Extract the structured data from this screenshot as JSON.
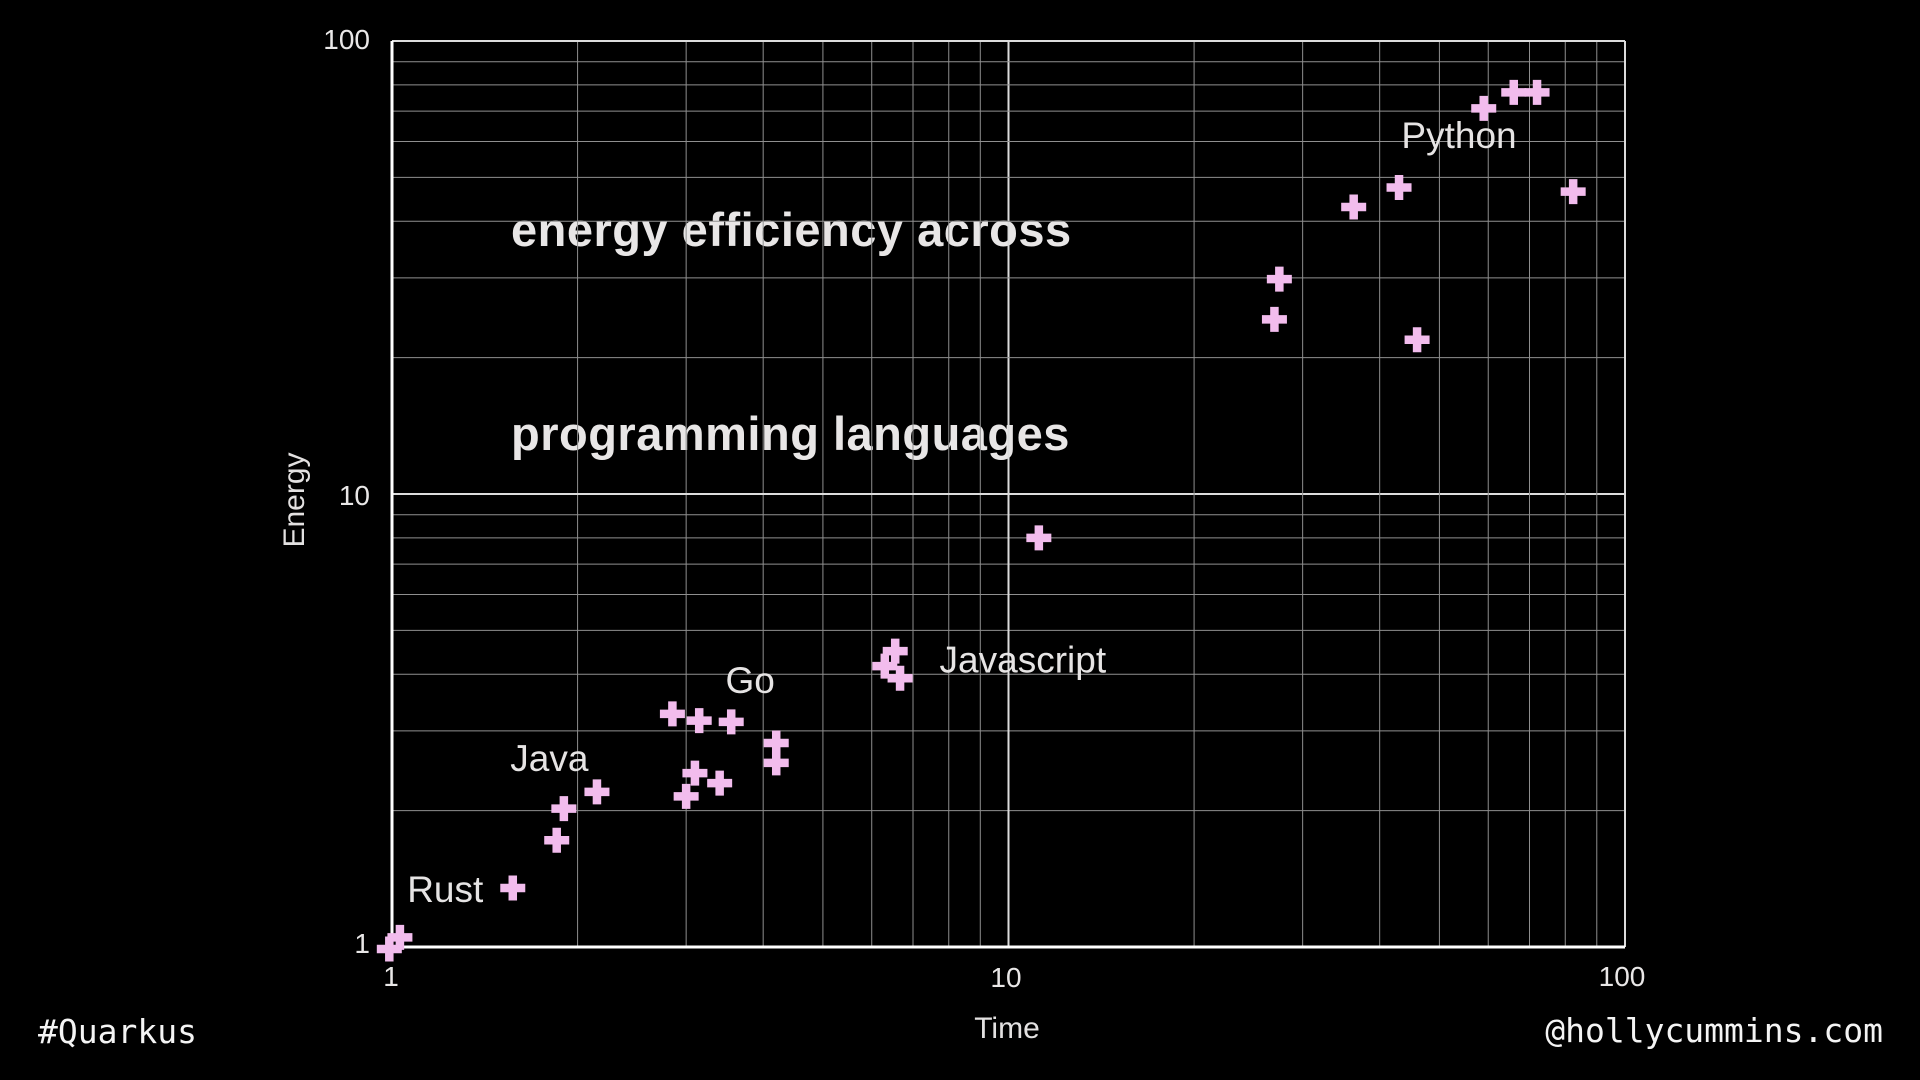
{
  "title": {
    "line1": "energy efficiency across",
    "line2": "programming languages"
  },
  "footer": {
    "hashtag": "#Quarkus",
    "website": "@hollycummins.com"
  },
  "chart_data": {
    "type": "scatter",
    "title": "energy efficiency across programming languages",
    "xlabel": "Time",
    "ylabel": "Energy",
    "xscale": "log",
    "yscale": "log",
    "xlim": [
      1,
      100
    ],
    "ylim": [
      1,
      100
    ],
    "grid": true,
    "x_ticks": [
      "1",
      "10",
      "100"
    ],
    "y_ticks": [
      "100",
      "10",
      "1"
    ],
    "marker": "plus",
    "marker_color": "#f2bced",
    "background_color": "#000000",
    "series": [
      {
        "name": "Rust",
        "label_at": [
          1.22,
          1.34
        ],
        "points": [
          [
            0.99,
            0.99
          ],
          [
            1.03,
            1.05
          ],
          [
            1.57,
            1.35
          ]
        ]
      },
      {
        "name": "Java",
        "label_at": [
          1.8,
          2.61
        ],
        "points": [
          [
            1.85,
            1.72
          ],
          [
            1.9,
            2.02
          ],
          [
            2.15,
            2.2
          ]
        ]
      },
      {
        "name": "Go",
        "label_at": [
          3.81,
          3.88
        ],
        "points": [
          [
            2.85,
            3.27
          ],
          [
            3.15,
            3.16
          ],
          [
            3.55,
            3.14
          ],
          [
            4.2,
            2.82
          ],
          [
            4.2,
            2.55
          ],
          [
            3.1,
            2.42
          ],
          [
            3.4,
            2.3
          ],
          [
            3.0,
            2.15
          ]
        ]
      },
      {
        "name": "Javascript",
        "label_at": [
          10.55,
          4.3
        ],
        "points": [
          [
            6.3,
            4.17
          ],
          [
            6.55,
            4.5
          ],
          [
            6.67,
            3.92
          ],
          [
            11.2,
            8.0
          ]
        ]
      },
      {
        "name": "Python",
        "label_at": [
          53.8,
          61.8
        ],
        "points": [
          [
            27.0,
            24.3
          ],
          [
            27.5,
            29.8
          ],
          [
            36.3,
            43.0
          ],
          [
            43.0,
            47.5
          ],
          [
            46.0,
            21.9
          ],
          [
            59.0,
            71.0
          ],
          [
            66.0,
            77.0
          ],
          [
            72.0,
            77.0
          ],
          [
            82.4,
            46.5
          ]
        ]
      }
    ]
  }
}
